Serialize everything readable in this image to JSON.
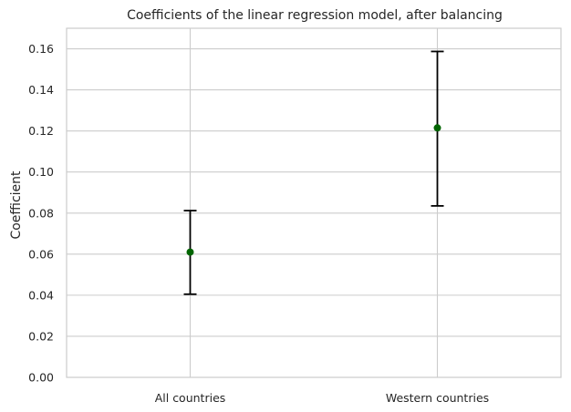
{
  "chart_data": {
    "type": "scatter",
    "title": "Coefficients of the linear regression model, after balancing",
    "xlabel": "",
    "ylabel": "Coefficient",
    "categories": [
      "All countries",
      "Western countries"
    ],
    "values": [
      0.061,
      0.1215
    ],
    "error_low": [
      0.0405,
      0.0835
    ],
    "error_high": [
      0.0812,
      0.1587
    ],
    "ylim": [
      0,
      0.17
    ],
    "yticks": [
      "0.00",
      "0.02",
      "0.04",
      "0.06",
      "0.08",
      "0.10",
      "0.12",
      "0.14",
      "0.16"
    ],
    "grid": true,
    "marker_color": "#006400",
    "errorbar_color": "#000000",
    "grid_color": "#cccccc",
    "spine_color": "#cccccc"
  }
}
